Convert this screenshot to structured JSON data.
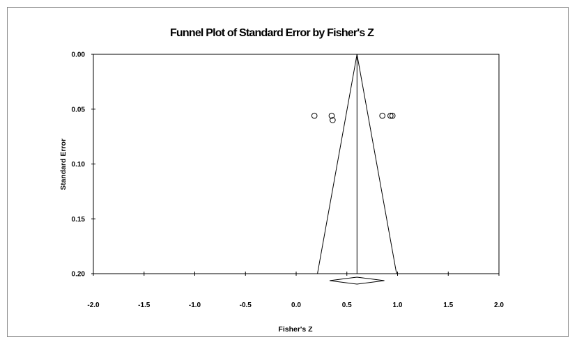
{
  "chart_data": {
    "type": "scatter",
    "title": "Funnel Plot of Standard Error by Fisher's Z",
    "xlabel": "Fisher's Z",
    "ylabel": "Standard Error",
    "xlim": [
      -2.0,
      2.0
    ],
    "ylim": [
      0.0,
      0.2
    ],
    "y_reversed": true,
    "x_ticks": [
      "-2.0",
      "-1.5",
      "-1.0",
      "-0.5",
      "0.0",
      "0.5",
      "1.0",
      "1.5",
      "2.0"
    ],
    "y_ticks": [
      "0.00",
      "0.05",
      "0.10",
      "0.15",
      "0.20"
    ],
    "grid": false,
    "legend": "none",
    "points": [
      {
        "x": 0.18,
        "y": 0.056
      },
      {
        "x": 0.35,
        "y": 0.056
      },
      {
        "x": 0.36,
        "y": 0.06
      },
      {
        "x": 0.85,
        "y": 0.056
      },
      {
        "x": 0.93,
        "y": 0.056
      },
      {
        "x": 0.95,
        "y": 0.056
      }
    ],
    "pooled_estimate": 0.6,
    "funnel_base": {
      "x_left": 0.21,
      "x_right": 0.99,
      "y": 0.2
    },
    "summary_diamond": {
      "x_left": 0.33,
      "center": 0.6,
      "x_right": 0.87
    },
    "colors": {
      "axis": "#000000",
      "marker": "#000000",
      "frame": "#8a8a8a"
    }
  }
}
